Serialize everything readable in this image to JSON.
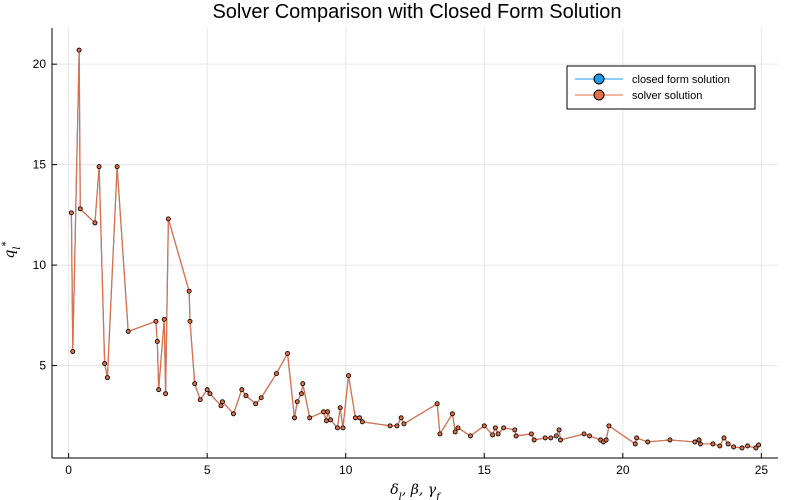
{
  "chart_data": {
    "type": "line",
    "title": "Solver Comparison with Closed Form Solution",
    "xlabel": "δ_l, β, γ_f",
    "ylabel": "q_l^*",
    "xlim": [
      -0.6,
      25.6
    ],
    "ylim": [
      0.4,
      21.8
    ],
    "xticks": [
      0,
      5,
      10,
      15,
      20,
      25
    ],
    "yticks": [
      5,
      10,
      15,
      20
    ],
    "grid": true,
    "legend_position": "top-right",
    "series": [
      {
        "name": "closed form solution",
        "color": "#1f9bea",
        "x": [
          0.1,
          0.15,
          0.38,
          0.42,
          0.95,
          1.1,
          1.3,
          1.4,
          1.75,
          2.15,
          3.15,
          3.2,
          3.25,
          3.45,
          3.5,
          3.6,
          4.35,
          4.38,
          4.55,
          4.75,
          5.0,
          5.1,
          5.5,
          5.55,
          5.95,
          6.25,
          6.4,
          6.75,
          6.95,
          7.5,
          7.9,
          8.15,
          8.25,
          8.4,
          8.45,
          8.7,
          9.2,
          9.3,
          9.35,
          9.45,
          9.7,
          9.8,
          9.9,
          10.1,
          10.35,
          10.5,
          10.6,
          11.6,
          11.85,
          12.0,
          12.1,
          13.3,
          13.4,
          13.85,
          13.95,
          14.05,
          14.5,
          15.0,
          15.3,
          15.4,
          15.5,
          15.7,
          16.1,
          16.15,
          16.7,
          16.8,
          17.2,
          17.4,
          17.6,
          17.7,
          17.75,
          18.6,
          18.8,
          19.2,
          19.3,
          19.4,
          19.5,
          20.45,
          20.5,
          20.9,
          21.7,
          22.6,
          22.75,
          22.8,
          23.25,
          23.5,
          23.65,
          23.8,
          24.0,
          24.3,
          24.5,
          24.8,
          24.9
        ],
        "y": [
          12.6,
          5.7,
          20.7,
          12.8,
          12.1,
          14.9,
          5.1,
          4.4,
          14.9,
          6.7,
          7.2,
          6.2,
          3.8,
          7.3,
          3.6,
          12.3,
          8.7,
          7.2,
          4.1,
          3.3,
          3.8,
          3.6,
          3.0,
          3.2,
          2.6,
          3.8,
          3.5,
          3.1,
          3.4,
          4.6,
          5.6,
          2.4,
          3.2,
          3.6,
          4.1,
          2.4,
          2.7,
          2.25,
          2.7,
          2.3,
          1.9,
          2.9,
          1.9,
          4.5,
          2.4,
          2.4,
          2.2,
          2.0,
          2.0,
          2.4,
          2.1,
          3.1,
          1.6,
          2.6,
          1.7,
          1.9,
          1.5,
          2.0,
          1.55,
          1.9,
          1.6,
          1.9,
          1.8,
          1.5,
          1.6,
          1.3,
          1.4,
          1.4,
          1.5,
          1.8,
          1.3,
          1.6,
          1.5,
          1.3,
          1.2,
          1.3,
          2.0,
          1.1,
          1.4,
          1.2,
          1.3,
          1.2,
          1.3,
          1.1,
          1.1,
          1.0,
          1.4,
          1.1,
          0.95,
          0.9,
          1.0,
          0.9,
          1.05
        ]
      },
      {
        "name": "solver solution",
        "color": "#e26f46",
        "x": [
          0.1,
          0.15,
          0.38,
          0.42,
          0.95,
          1.1,
          1.3,
          1.4,
          1.75,
          2.15,
          3.15,
          3.2,
          3.25,
          3.45,
          3.5,
          3.6,
          4.35,
          4.38,
          4.55,
          4.75,
          5.0,
          5.1,
          5.5,
          5.55,
          5.95,
          6.25,
          6.4,
          6.75,
          6.95,
          7.5,
          7.9,
          8.15,
          8.25,
          8.4,
          8.45,
          8.7,
          9.2,
          9.3,
          9.35,
          9.45,
          9.7,
          9.8,
          9.9,
          10.1,
          10.35,
          10.5,
          10.6,
          11.6,
          11.85,
          12.0,
          12.1,
          13.3,
          13.4,
          13.85,
          13.95,
          14.05,
          14.5,
          15.0,
          15.3,
          15.4,
          15.5,
          15.7,
          16.1,
          16.15,
          16.7,
          16.8,
          17.2,
          17.4,
          17.6,
          17.7,
          17.75,
          18.6,
          18.8,
          19.2,
          19.3,
          19.4,
          19.5,
          20.45,
          20.5,
          20.9,
          21.7,
          22.6,
          22.75,
          22.8,
          23.25,
          23.5,
          23.65,
          23.8,
          24.0,
          24.3,
          24.5,
          24.8,
          24.9
        ],
        "y": [
          12.6,
          5.7,
          20.7,
          12.8,
          12.1,
          14.9,
          5.1,
          4.4,
          14.9,
          6.7,
          7.2,
          6.2,
          3.8,
          7.3,
          3.6,
          12.3,
          8.7,
          7.2,
          4.1,
          3.3,
          3.8,
          3.6,
          3.0,
          3.2,
          2.6,
          3.8,
          3.5,
          3.1,
          3.4,
          4.6,
          5.6,
          2.4,
          3.2,
          3.6,
          4.1,
          2.4,
          2.7,
          2.25,
          2.7,
          2.3,
          1.9,
          2.9,
          1.9,
          4.5,
          2.4,
          2.4,
          2.2,
          2.0,
          2.0,
          2.4,
          2.1,
          3.1,
          1.6,
          2.6,
          1.7,
          1.9,
          1.5,
          2.0,
          1.55,
          1.9,
          1.6,
          1.9,
          1.8,
          1.5,
          1.6,
          1.3,
          1.4,
          1.4,
          1.5,
          1.8,
          1.3,
          1.6,
          1.5,
          1.3,
          1.2,
          1.3,
          2.0,
          1.1,
          1.4,
          1.2,
          1.3,
          1.2,
          1.3,
          1.1,
          1.1,
          1.0,
          1.4,
          1.1,
          0.95,
          0.9,
          1.0,
          0.9,
          1.05
        ]
      }
    ]
  }
}
